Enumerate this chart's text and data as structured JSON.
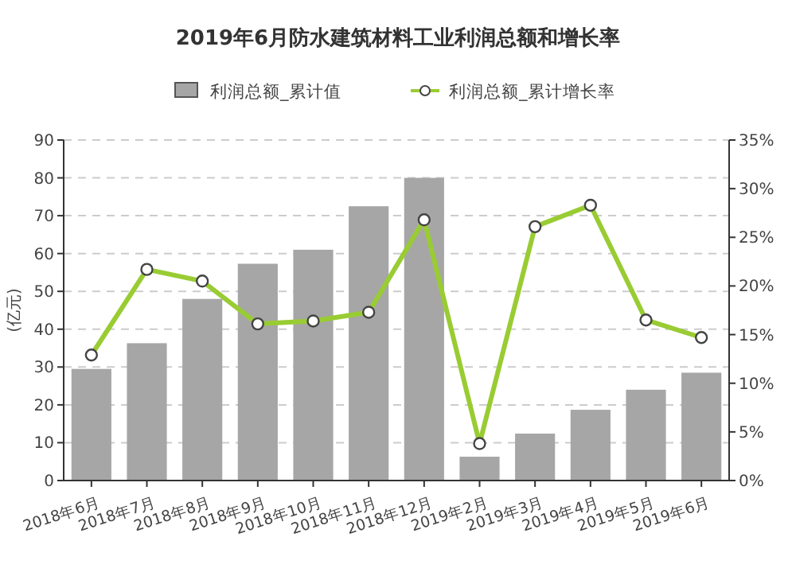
{
  "chart_data": {
    "type": "bar",
    "title": "2019年6月防水建筑材料工业利润总额和增长率",
    "ylabel": "(亿元)",
    "categories": [
      "2018年6月",
      "2018年7月",
      "2018年8月",
      "2018年9月",
      "2018年10月",
      "2018年11月",
      "2018年12月",
      "2019年2月",
      "2019年3月",
      "2019年4月",
      "2019年5月",
      "2019年6月"
    ],
    "series": [
      {
        "name": "利润总额_累计值",
        "color": "#a6a6a6",
        "values": [
          29.5,
          36.3,
          48,
          57.3,
          61,
          72.5,
          80,
          6.3,
          12.4,
          18.7,
          24,
          28.5
        ]
      },
      {
        "name": "利润总额_累计增长率",
        "type": "line",
        "axis": "y2",
        "color": "#99cc33",
        "marker": "circle",
        "values": [
          12.9,
          21.7,
          20.5,
          16.1,
          16.4,
          17.3,
          26.8,
          3.8,
          26.1,
          28.3,
          16.5,
          14.7
        ]
      }
    ],
    "ylim": [
      0,
      90
    ],
    "yticks": [
      0,
      10,
      20,
      30,
      40,
      50,
      60,
      70,
      80,
      90
    ],
    "y2lim": [
      0,
      35
    ],
    "y2ticks": [
      {
        "value": 0,
        "label": "0%"
      },
      {
        "value": 5,
        "label": "5%"
      },
      {
        "value": 10,
        "label": "10%"
      },
      {
        "value": 15,
        "label": "15%"
      },
      {
        "value": 20,
        "label": "20%"
      },
      {
        "value": 25,
        "label": "25%"
      },
      {
        "value": 30,
        "label": "30%"
      },
      {
        "value": 35,
        "label": "35%"
      }
    ],
    "grid": "y",
    "legend": "top"
  }
}
